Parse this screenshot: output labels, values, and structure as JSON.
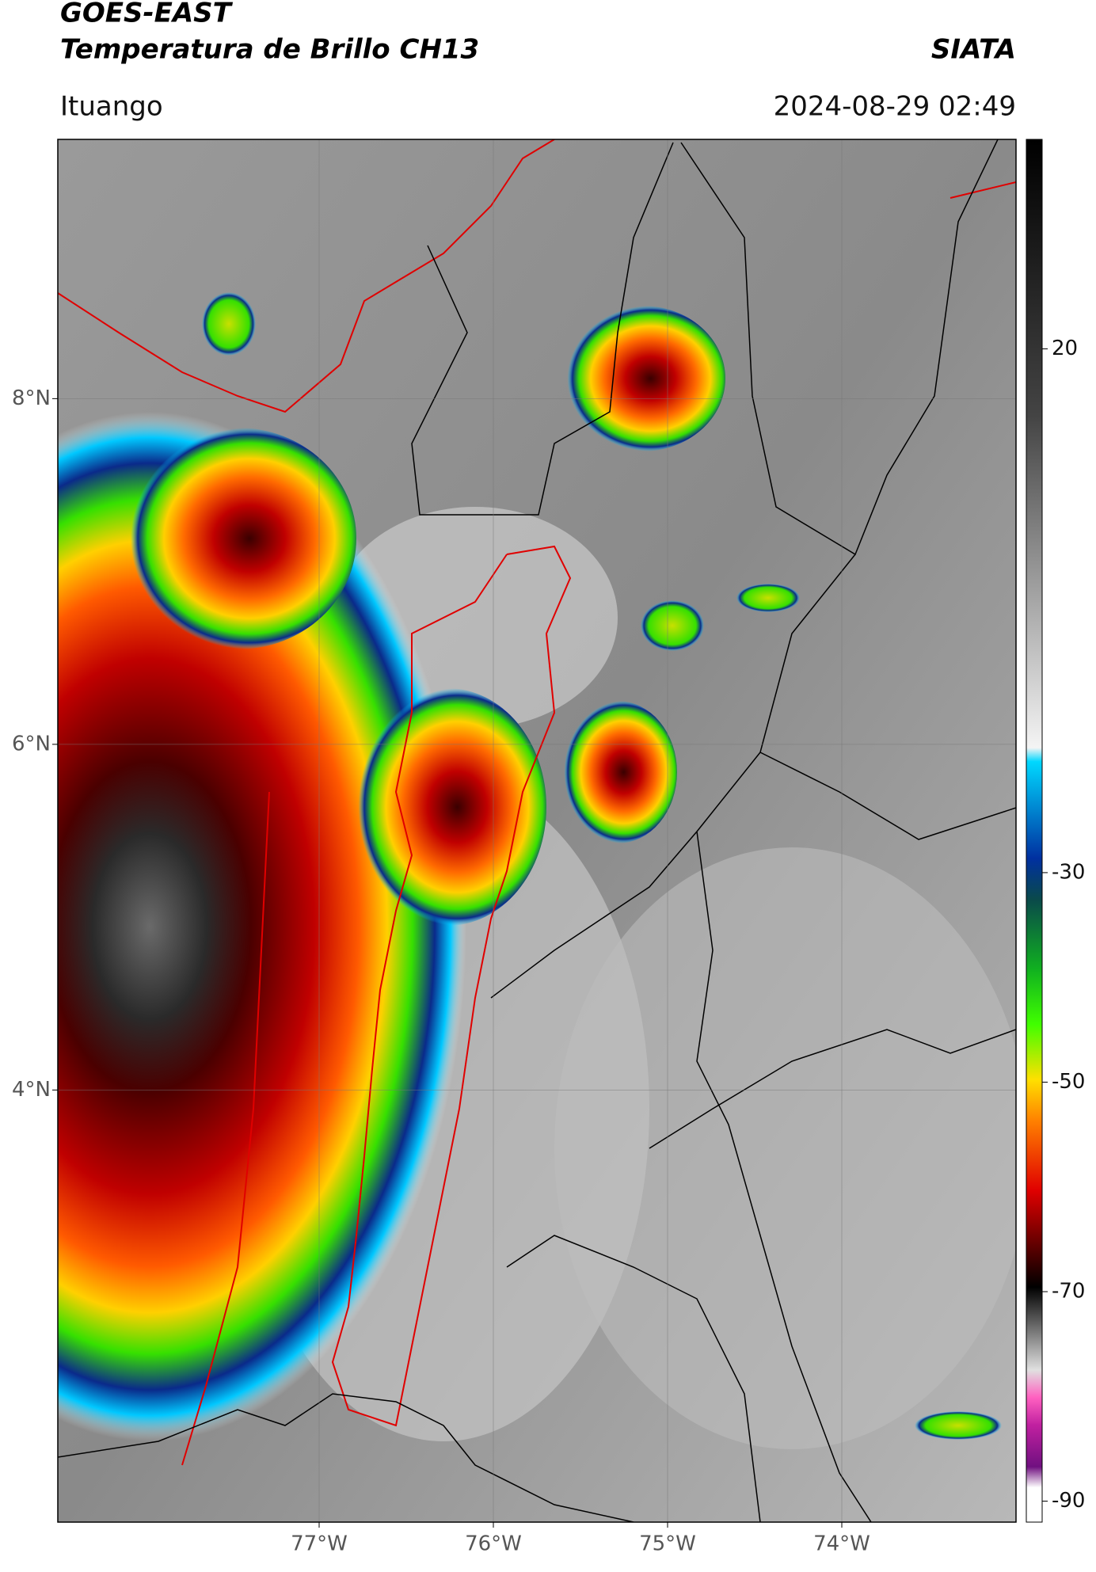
{
  "header": {
    "title": "GOES-EAST",
    "subtitle": "Temperatura de Brillo CH13",
    "agency": "SIATA",
    "location": "Ituango",
    "datetime": "2024-08-29 02:49"
  },
  "map": {
    "lon_range": [
      -78.5,
      -73
    ],
    "lat_range": [
      1.5,
      9.5
    ],
    "lon_ticks": [
      {
        "value": -77,
        "label": "77°W"
      },
      {
        "value": -76,
        "label": "76°W"
      },
      {
        "value": -75,
        "label": "75°W"
      },
      {
        "value": -74,
        "label": "74°W"
      }
    ],
    "lat_ticks": [
      {
        "value": 8,
        "label": "8°N"
      },
      {
        "value": 6,
        "label": "6°N"
      },
      {
        "value": 4,
        "label": "4°N"
      }
    ],
    "grid": true
  },
  "colorbar": {
    "range": [
      -92,
      40
    ],
    "ticks": [
      20,
      -30,
      -50,
      -70,
      -90
    ]
  }
}
